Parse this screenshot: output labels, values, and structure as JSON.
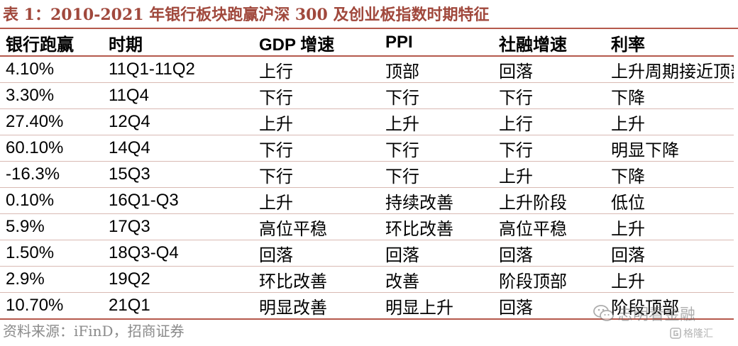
{
  "title": "表 1：2010-2021 年银行板块跑赢沪深 300 及创业板指数时期特征",
  "table": {
    "headers": [
      "银行跑赢",
      "时期",
      "GDP 增速",
      "PPI",
      "社融增速",
      "利率"
    ],
    "rows": [
      [
        "4.10%",
        "11Q1-11Q2",
        "上行",
        "顶部",
        "回落",
        "上升周期接近顶部"
      ],
      [
        "3.30%",
        "11Q4",
        "下行",
        "下行",
        "下行",
        "下降"
      ],
      [
        "27.40%",
        "12Q4",
        "上升",
        "上升",
        "上行",
        "上升"
      ],
      [
        "60.10%",
        "14Q4",
        "下行",
        "下行",
        "下行",
        "明显下降"
      ],
      [
        "-16.3%",
        "15Q3",
        "下行",
        "下行",
        "上升",
        "下降"
      ],
      [
        "0.10%",
        "16Q1-Q3",
        "上升",
        "持续改善",
        "上升阶段",
        "低位"
      ],
      [
        "5.9%",
        "17Q3",
        "高位平稳",
        "环比改善",
        "高位平稳",
        "上升"
      ],
      [
        "1.50%",
        "18Q3-Q4",
        "回落",
        "回落",
        "回落",
        "回落"
      ],
      [
        "2.9%",
        "19Q2",
        "环比改善",
        "改善",
        "阶段顶部",
        "上升"
      ],
      [
        "10.70%",
        "21Q1",
        "明显改善",
        "明显上升",
        "回落",
        "阶段顶部"
      ]
    ]
  },
  "source": "资料来源：iFinD，招商证券",
  "watermark": {
    "main": "志明看金融",
    "sub": "格隆汇",
    "main_icon": "wechat-icon",
    "sub_icon": "gelonghui-logo-icon"
  },
  "colors": {
    "accent": "#a0483c",
    "rule": "#b5594c",
    "source_text": "#8a8a8a"
  }
}
